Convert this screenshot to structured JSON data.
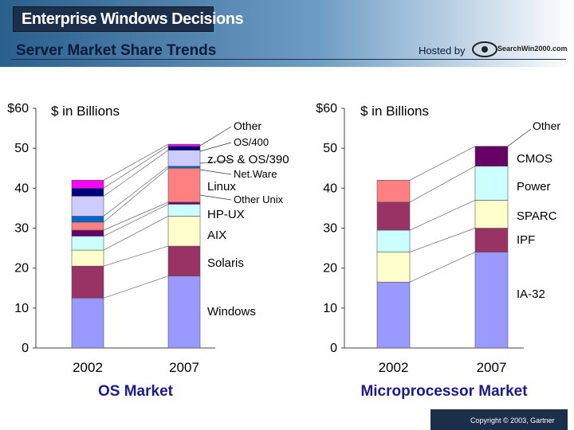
{
  "header": {
    "brand": "Enterprise Windows Decisions",
    "title": "Server Market Share Trends",
    "hosted_by": "Hosted by",
    "logo_text": "SearchWin2000.com"
  },
  "footer": {
    "copyright": "Copyright © 2003, Gartner"
  },
  "colors": {
    "banner_dark": "#1b2f4a",
    "axis": "#444444",
    "leader": "#666666",
    "caption": "#1a1a8c"
  },
  "chart_data": [
    {
      "type": "bar",
      "stacked": true,
      "title": "OS Market",
      "ylabel": "$ in Billions",
      "ylim": [
        0,
        60
      ],
      "yticks": [
        "0",
        "10",
        "20",
        "30",
        "40",
        "50",
        "$60"
      ],
      "categories": [
        "2002",
        "2007"
      ],
      "series": [
        {
          "name": "Windows",
          "color": "#9999ff",
          "values": [
            12.5,
            18
          ]
        },
        {
          "name": "Solaris",
          "color": "#993366",
          "values": [
            8,
            7.5
          ]
        },
        {
          "name": "AIX",
          "color": "#ffffcc",
          "values": [
            4,
            7.5
          ]
        },
        {
          "name": "HP-UX",
          "color": "#ccffff",
          "values": [
            3.5,
            3
          ]
        },
        {
          "name": "Other Unix",
          "color": "#660066",
          "values": [
            1.5,
            0.5
          ]
        },
        {
          "name": "Linux",
          "color": "#ff8080",
          "values": [
            2,
            8.5
          ]
        },
        {
          "name": "Net.Ware",
          "color": "#0066cc",
          "values": [
            1.5,
            0.5
          ]
        },
        {
          "name": "z.OS & OS/390",
          "color": "#ccccff",
          "values": [
            5,
            4
          ]
        },
        {
          "name": "OS/400",
          "color": "#000080",
          "values": [
            2,
            1
          ]
        },
        {
          "name": "Other",
          "color": "#ff00ff",
          "values": [
            2,
            0.5
          ]
        }
      ]
    },
    {
      "type": "bar",
      "stacked": true,
      "title": "Microprocessor Market",
      "ylabel": "$ in Billions",
      "ylim": [
        0,
        60
      ],
      "yticks": [
        "0",
        "10",
        "20",
        "30",
        "40",
        "50",
        "$60"
      ],
      "categories": [
        "2002",
        "2007"
      ],
      "series": [
        {
          "name": "IA-32",
          "color": "#9999ff",
          "values": [
            16.5,
            24
          ]
        },
        {
          "name": "IPF",
          "color": "#ffffcc",
          "values": [
            7.5,
            0
          ]
        },
        {
          "name": "IPF",
          "color": "#993366",
          "values": [
            0,
            6
          ]
        },
        {
          "name": "SPARC",
          "color": "#ccffff",
          "values": [
            5.5,
            0
          ]
        },
        {
          "name": "SPARC",
          "color": "#ffffcc",
          "values": [
            0,
            7
          ]
        },
        {
          "name": "Power",
          "color": "#993366",
          "values": [
            7,
            0
          ]
        },
        {
          "name": "Power",
          "color": "#ccffff",
          "values": [
            0,
            8.5
          ]
        },
        {
          "name": "CMOS",
          "color": "#ff8080",
          "values": [
            5.5,
            0
          ]
        },
        {
          "name": "CMOS",
          "color": "#660066",
          "values": [
            0,
            5
          ]
        },
        {
          "name": "Other",
          "color": "#ccccff",
          "values": [
            0,
            0
          ]
        }
      ],
      "labels": [
        "Other",
        "CMOS",
        "Power",
        "SPARC",
        "IPF",
        "IA-32"
      ]
    }
  ]
}
